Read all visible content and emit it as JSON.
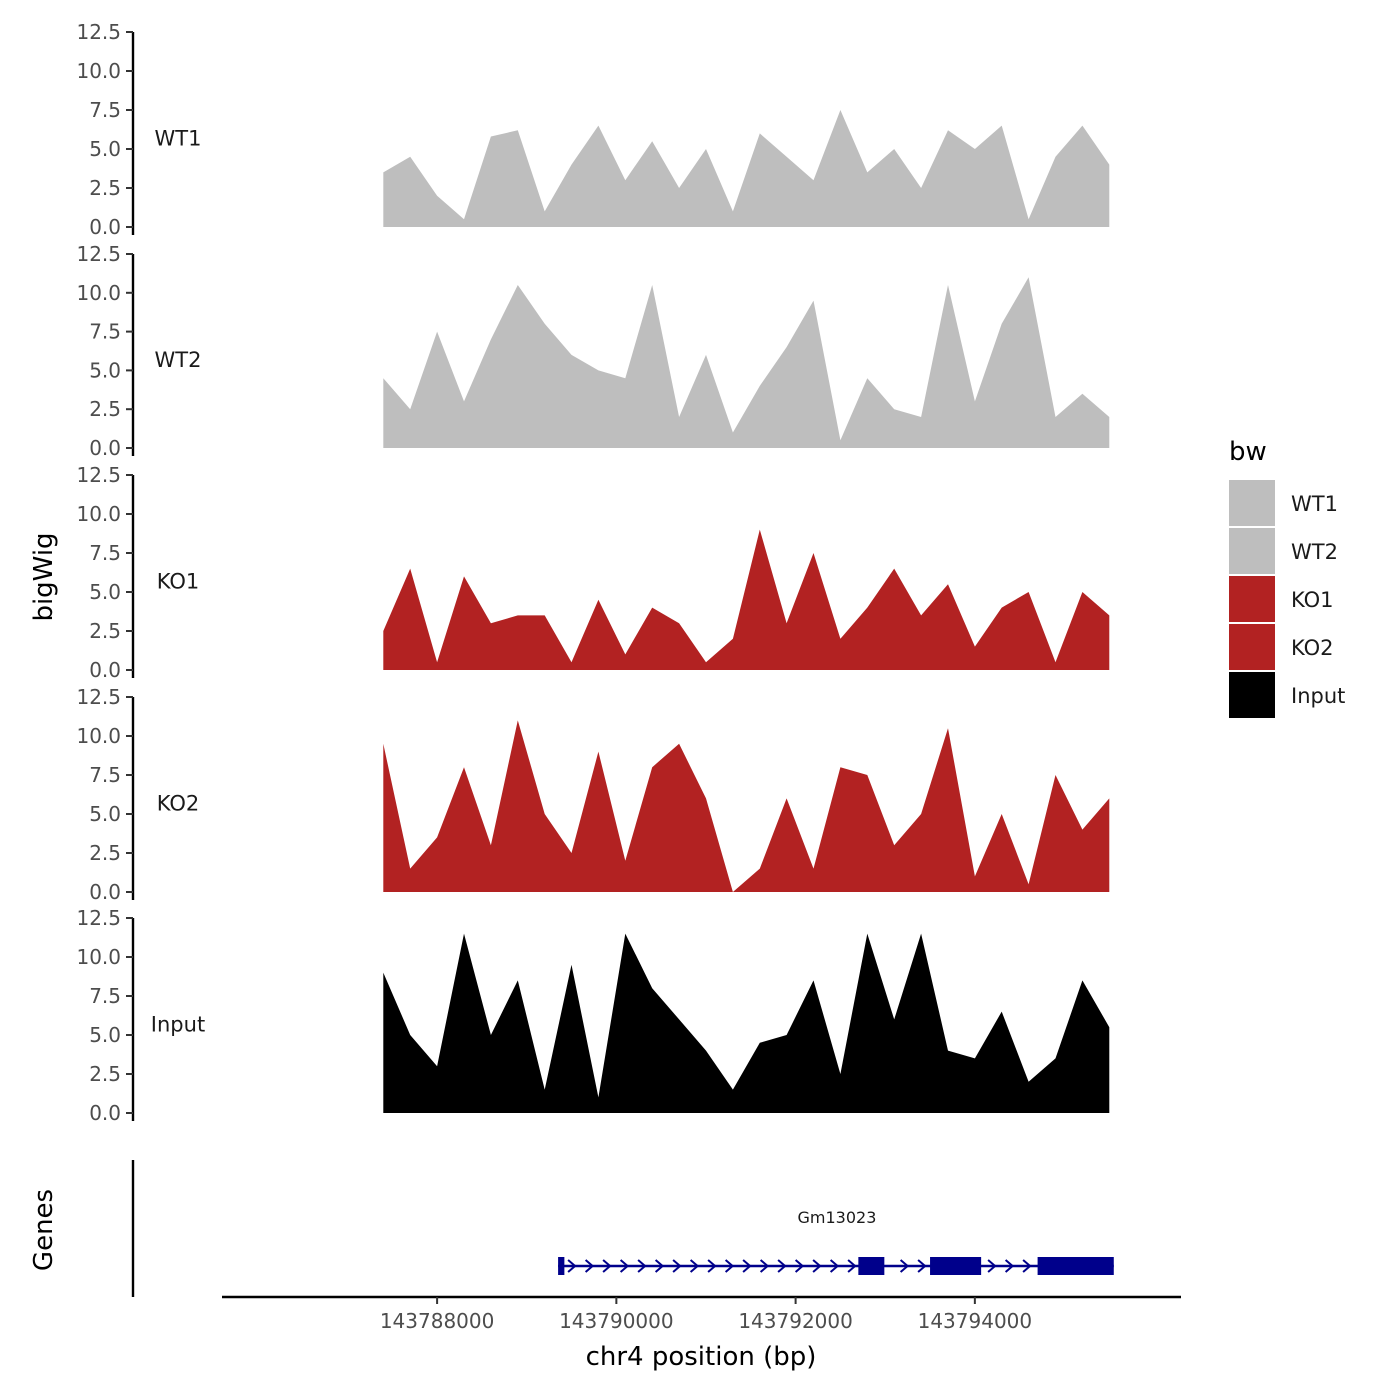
{
  "chart_data": {
    "type": "area",
    "xlabel": "chr4 position (bp)",
    "ylabel": "bigWig",
    "genes_label": "Genes",
    "xlim": [
      143785600,
      143796300
    ],
    "x_ticks": [
      143788000,
      143790000,
      143792000,
      143794000
    ],
    "x_tick_labels": [
      "143788000",
      "143790000",
      "143792000",
      "143794000"
    ],
    "ylim": [
      0,
      12.5
    ],
    "y_ticks": [
      0,
      2.5,
      5,
      7.5,
      10,
      12.5
    ],
    "y_tick_labels": [
      "0.0",
      "2.5",
      "5.0",
      "7.5",
      "10.0",
      "12.5"
    ],
    "legend": {
      "title": "bw",
      "entries": [
        {
          "label": "WT1",
          "color": "#bebebe"
        },
        {
          "label": "WT2",
          "color": "#bebebe"
        },
        {
          "label": "KO1",
          "color": "#b22222"
        },
        {
          "label": "KO2",
          "color": "#b22222"
        },
        {
          "label": "Input",
          "color": "#000000"
        }
      ]
    },
    "series": [
      {
        "name": "WT1",
        "color": "#bebebe",
        "x": [
          143787400,
          143787700,
          143788000,
          143788300,
          143788600,
          143788900,
          143789200,
          143789500,
          143789800,
          143790100,
          143790400,
          143790700,
          143791000,
          143791300,
          143791600,
          143791900,
          143792200,
          143792500,
          143792800,
          143793100,
          143793400,
          143793700,
          143794000,
          143794300,
          143794600,
          143794900,
          143795200,
          143795500
        ],
        "values": [
          3.5,
          4.5,
          2.0,
          0.5,
          5.8,
          6.2,
          1.0,
          4.0,
          6.5,
          3.0,
          5.5,
          2.5,
          5.0,
          1.0,
          6.0,
          4.5,
          3.0,
          7.5,
          3.5,
          5.0,
          2.5,
          6.2,
          5.0,
          6.5,
          0.5,
          4.5,
          6.5,
          4.0
        ]
      },
      {
        "name": "WT2",
        "color": "#bebebe",
        "x": [
          143787400,
          143787700,
          143788000,
          143788300,
          143788600,
          143788900,
          143789200,
          143789500,
          143789800,
          143790100,
          143790400,
          143790700,
          143791000,
          143791300,
          143791600,
          143791900,
          143792200,
          143792500,
          143792800,
          143793100,
          143793400,
          143793700,
          143794000,
          143794300,
          143794600,
          143794900,
          143795200,
          143795500
        ],
        "values": [
          4.5,
          2.5,
          7.5,
          3.0,
          7.0,
          10.5,
          8.0,
          6.0,
          5.0,
          4.5,
          10.5,
          2.0,
          6.0,
          1.0,
          4.0,
          6.5,
          9.5,
          0.5,
          4.5,
          2.5,
          2.0,
          10.5,
          3.0,
          8.0,
          11.0,
          2.0,
          3.5,
          2.0
        ]
      },
      {
        "name": "KO1",
        "color": "#b22222",
        "x": [
          143787400,
          143787700,
          143788000,
          143788300,
          143788600,
          143788900,
          143789200,
          143789500,
          143789800,
          143790100,
          143790400,
          143790700,
          143791000,
          143791300,
          143791600,
          143791900,
          143792200,
          143792500,
          143792800,
          143793100,
          143793400,
          143793700,
          143794000,
          143794300,
          143794600,
          143794900,
          143795200,
          143795500
        ],
        "values": [
          2.5,
          6.5,
          0.5,
          6.0,
          3.0,
          3.5,
          3.5,
          0.5,
          4.5,
          1.0,
          4.0,
          3.0,
          0.5,
          2.0,
          9.0,
          3.0,
          7.5,
          2.0,
          4.0,
          6.5,
          3.5,
          5.5,
          1.5,
          4.0,
          5.0,
          0.5,
          5.0,
          3.5
        ]
      },
      {
        "name": "KO2",
        "color": "#b22222",
        "x": [
          143787400,
          143787700,
          143788000,
          143788300,
          143788600,
          143788900,
          143789200,
          143789500,
          143789800,
          143790100,
          143790400,
          143790700,
          143791000,
          143791300,
          143791600,
          143791900,
          143792200,
          143792500,
          143792800,
          143793100,
          143793400,
          143793700,
          143794000,
          143794300,
          143794600,
          143794900,
          143795200,
          143795500
        ],
        "values": [
          9.5,
          1.5,
          3.5,
          8.0,
          3.0,
          11.0,
          5.0,
          2.5,
          9.0,
          2.0,
          8.0,
          9.5,
          6.0,
          0.0,
          1.5,
          6.0,
          1.5,
          8.0,
          7.5,
          3.0,
          5.0,
          10.5,
          1.0,
          5.0,
          0.5,
          7.5,
          4.0,
          6.0
        ]
      },
      {
        "name": "Input",
        "color": "#000000",
        "x": [
          143787400,
          143787700,
          143788000,
          143788300,
          143788600,
          143788900,
          143789200,
          143789500,
          143789800,
          143790100,
          143790400,
          143790700,
          143791000,
          143791300,
          143791600,
          143791900,
          143792200,
          143792500,
          143792800,
          143793100,
          143793400,
          143793700,
          143794000,
          143794300,
          143794600,
          143794900,
          143795200,
          143795500
        ],
        "values": [
          9.0,
          5.0,
          3.0,
          11.5,
          5.0,
          8.5,
          1.5,
          9.5,
          1.0,
          11.5,
          8.0,
          6.0,
          4.0,
          1.5,
          4.5,
          5.0,
          8.5,
          2.5,
          11.5,
          6.0,
          11.5,
          4.0,
          3.5,
          6.5,
          2.0,
          3.5,
          8.5,
          5.5
        ]
      }
    ],
    "gene": {
      "name": "Gm13023",
      "color": "#00008b",
      "start": 143789350,
      "end": 143795550,
      "strand": "+",
      "exons": [
        [
          143789350,
          143789420
        ],
        [
          143792700,
          143792990
        ],
        [
          143793500,
          143794070
        ],
        [
          143794700,
          143795550
        ]
      ]
    }
  }
}
